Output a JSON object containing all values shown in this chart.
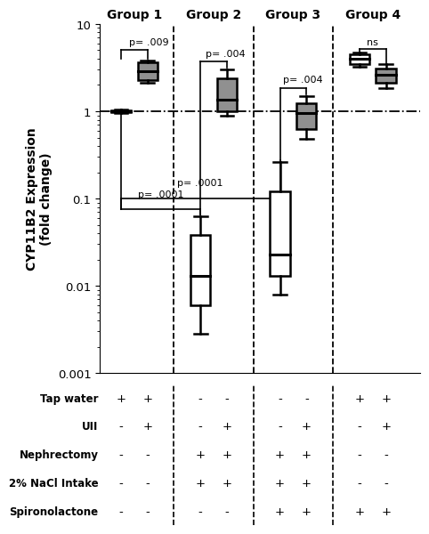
{
  "ylabel": "CYP11B2 Expression\n(fold change)",
  "groups": [
    "Group 1",
    "Group 2",
    "Group 3",
    "Group 4"
  ],
  "ymin": 0.001,
  "ymax": 10,
  "boxes": {
    "g1_white": {
      "q1": 0.97,
      "median": 1.0,
      "q3": 1.03,
      "whislo": 0.95,
      "whishi": 1.05
    },
    "g1_gray": {
      "q1": 2.3,
      "median": 2.9,
      "q3": 3.6,
      "whislo": 2.1,
      "whishi": 3.85
    },
    "g2_white": {
      "q1": 0.006,
      "median": 0.013,
      "q3": 0.038,
      "whislo": 0.0028,
      "whishi": 0.062
    },
    "g2_gray": {
      "q1": 1.0,
      "median": 1.35,
      "q3": 2.4,
      "whislo": 0.88,
      "whishi": 3.0
    },
    "g3_white": {
      "q1": 0.013,
      "median": 0.023,
      "q3": 0.12,
      "whislo": 0.008,
      "whishi": 0.26
    },
    "g3_gray": {
      "q1": 0.62,
      "median": 0.95,
      "q3": 1.25,
      "whislo": 0.48,
      "whishi": 1.5
    },
    "g4_white": {
      "q1": 3.5,
      "median": 4.0,
      "q3": 4.5,
      "whislo": 3.2,
      "whishi": 4.75
    },
    "g4_gray": {
      "q1": 2.1,
      "median": 2.6,
      "q3": 3.1,
      "whislo": 1.85,
      "whishi": 3.5
    }
  },
  "group_centers": [
    1.5,
    4.5,
    7.5,
    10.5
  ],
  "group_dividers": [
    3.0,
    6.0,
    9.0
  ],
  "gray_color": "#909090",
  "table_rows": [
    "Tap water",
    "UII",
    "Nephrectomy",
    "2% NaCl Intake",
    "Spironolactone"
  ],
  "table_data": [
    [
      "+",
      "+",
      "-",
      "-",
      "-",
      "-",
      "+",
      "+"
    ],
    [
      "-",
      "+",
      "-",
      "+",
      "-",
      "+",
      "-",
      "+"
    ],
    [
      "-",
      "-",
      "+",
      "+",
      "+",
      "+",
      "-",
      "-"
    ],
    [
      "-",
      "-",
      "+",
      "+",
      "+",
      "+",
      "-",
      "-"
    ],
    [
      "-",
      "-",
      "-",
      "-",
      "+",
      "+",
      "+",
      "+"
    ]
  ],
  "col_positions": [
    1,
    2,
    4,
    5,
    7,
    8,
    10,
    11
  ]
}
